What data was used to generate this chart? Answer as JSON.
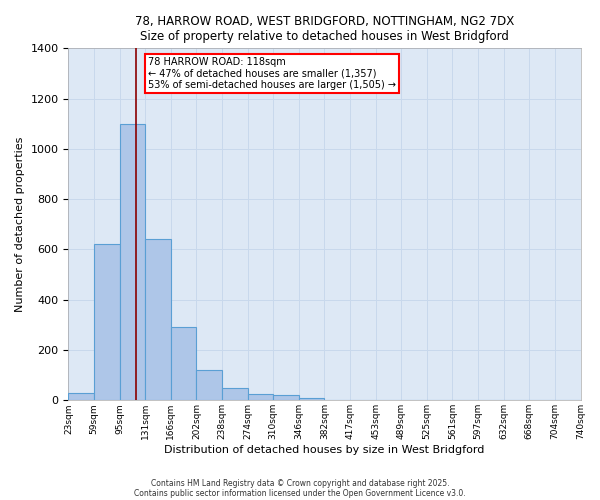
{
  "title_line1": "78, HARROW ROAD, WEST BRIDGFORD, NOTTINGHAM, NG2 7DX",
  "title_line2": "Size of property relative to detached houses in West Bridgford",
  "bar_values": [
    30,
    620,
    1100,
    640,
    290,
    120,
    47,
    25,
    20,
    10,
    0,
    0,
    0,
    0,
    0,
    0,
    0,
    0,
    0,
    0
  ],
  "bin_labels": [
    "23sqm",
    "59sqm",
    "95sqm",
    "131sqm",
    "166sqm",
    "202sqm",
    "238sqm",
    "274sqm",
    "310sqm",
    "346sqm",
    "382sqm",
    "417sqm",
    "453sqm",
    "489sqm",
    "525sqm",
    "561sqm",
    "597sqm",
    "632sqm",
    "668sqm",
    "704sqm",
    "740sqm"
  ],
  "bar_color": "#aec6e8",
  "bar_edge_color": "#5a9fd4",
  "bar_width": 1.0,
  "grid_color": "#c8d8ec",
  "background_color": "#dde8f5",
  "ylabel": "Number of detached properties",
  "xlabel": "Distribution of detached houses by size in West Bridgford",
  "ylim": [
    0,
    1400
  ],
  "yticks": [
    0,
    200,
    400,
    600,
    800,
    1000,
    1200,
    1400
  ],
  "annotation_text": "78 HARROW ROAD: 118sqm\n← 47% of detached houses are smaller (1,357)\n53% of semi-detached houses are larger (1,505) →",
  "footer_line1": "Contains HM Land Registry data © Crown copyright and database right 2025.",
  "footer_line2": "Contains public sector information licensed under the Open Government Licence v3.0."
}
